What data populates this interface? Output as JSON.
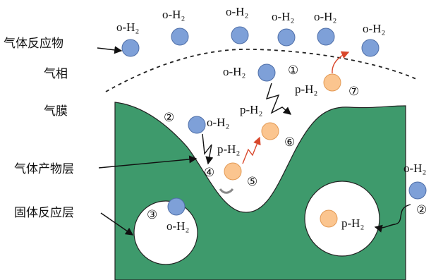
{
  "regions": {
    "gas_reactant": "气体反应物",
    "gas_phase": "气相",
    "gas_film": "气膜",
    "product_layer": "气体产物层",
    "solid_layer": "固体反应层"
  },
  "species_labels": [
    "o-H₂",
    "o-H₂",
    "o-H₂",
    "o-H₂",
    "o-H₂",
    "o-H₂",
    "o-H₂",
    "p-H₂",
    "p-H₂",
    "o-H₂",
    "p-H₂",
    "o-H₂",
    "p-H₂",
    "o-H₂"
  ],
  "steps": [
    "①",
    "②",
    "③",
    "④",
    "⑤",
    "⑥",
    "⑦",
    "②"
  ]
}
